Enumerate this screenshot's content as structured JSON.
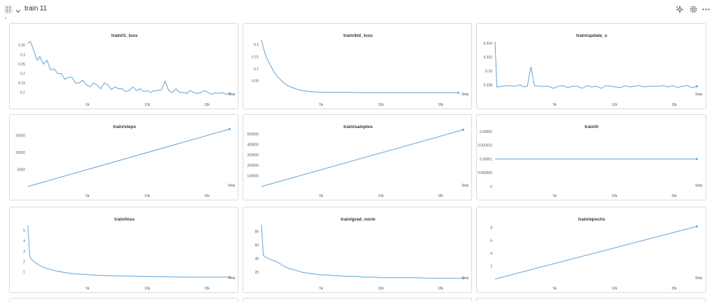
{
  "section": {
    "title": "train",
    "count": "11"
  },
  "panels": [
    {
      "title": "train/l1_loss",
      "x_label": "Step",
      "x_ticks": [
        "5k",
        "10k",
        "15k"
      ],
      "y_ticks": [
        "0.35",
        "0.3",
        "0.25",
        "0.2",
        "0.15",
        "0.1"
      ]
    },
    {
      "title": "train/kld_loss",
      "x_label": "Step",
      "x_ticks": [
        "5k",
        "10k",
        "15k"
      ],
      "y_ticks": [
        "0.2",
        "0.15",
        "0.1",
        "0.05"
      ]
    },
    {
      "title": "train/update_s",
      "x_label": "Step",
      "x_ticks": [
        "5k",
        "10k",
        "15k"
      ],
      "y_ticks": [
        "0.334",
        "0.332",
        "0.33",
        "0.328"
      ]
    },
    {
      "title": "train/steps",
      "x_label": "Step",
      "x_ticks": [
        "5k",
        "10k",
        "15k"
      ],
      "y_ticks": [
        "15000",
        "10000",
        "5000"
      ]
    },
    {
      "title": "train/samples",
      "x_label": "Step",
      "x_ticks": [
        "5k",
        "10k",
        "15k"
      ],
      "y_ticks": [
        "500000",
        "400000",
        "300000",
        "200000",
        "100000"
      ]
    },
    {
      "title": "train/lr",
      "x_label": "Step",
      "x_ticks": [
        "5k",
        "10k",
        "15k"
      ],
      "y_ticks": [
        "0.00002",
        "0.000015",
        "0.00001",
        "0.000005",
        "0"
      ]
    },
    {
      "title": "train/loss",
      "x_label": "Step",
      "x_ticks": [
        "5k",
        "10k",
        "15k"
      ],
      "y_ticks": [
        "5",
        "4",
        "3",
        "2",
        "1"
      ]
    },
    {
      "title": "train/grad_norm",
      "x_label": "Step",
      "x_ticks": [
        "5k",
        "10k",
        "15k"
      ],
      "y_ticks": [
        "80",
        "60",
        "40",
        "20"
      ]
    },
    {
      "title": "train/epochs",
      "x_label": "Step",
      "x_ticks": [
        "5k",
        "10k",
        "15k"
      ],
      "y_ticks": [
        "8",
        "6",
        "4",
        "2"
      ]
    }
  ],
  "chart_data": [
    {
      "type": "line",
      "title": "train/l1_loss",
      "xlabel": "Step",
      "ylabel": "",
      "xlim": [
        0,
        17000
      ],
      "ylim": [
        0.085,
        0.39
      ],
      "grid": false,
      "legend": "none",
      "x": [
        0,
        200,
        400,
        600,
        800,
        1000,
        1300,
        1600,
        1900,
        2200,
        2500,
        2800,
        3100,
        3400,
        3700,
        4000,
        4300,
        4600,
        4900,
        5200,
        5500,
        5800,
        6100,
        6400,
        6700,
        7000,
        7300,
        7600,
        7900,
        8200,
        8500,
        8800,
        9100,
        9400,
        9700,
        10000,
        10300,
        10600,
        10900,
        11200,
        11500,
        11800,
        12100,
        12400,
        12700,
        13000,
        13300,
        13600,
        13900,
        14200,
        14500,
        14800,
        15100,
        15400,
        15700,
        16000,
        16300,
        16600,
        16900
      ],
      "y": [
        0.36,
        0.37,
        0.34,
        0.3,
        0.27,
        0.29,
        0.25,
        0.27,
        0.22,
        0.225,
        0.2,
        0.2,
        0.17,
        0.18,
        0.18,
        0.15,
        0.15,
        0.165,
        0.14,
        0.13,
        0.15,
        0.14,
        0.12,
        0.15,
        0.14,
        0.115,
        0.13,
        0.12,
        0.12,
        0.105,
        0.11,
        0.13,
        0.11,
        0.12,
        0.105,
        0.11,
        0.1,
        0.11,
        0.11,
        0.115,
        0.16,
        0.11,
        0.1,
        0.12,
        0.1,
        0.1,
        0.095,
        0.11,
        0.1,
        0.095,
        0.1,
        0.11,
        0.1,
        0.09,
        0.1,
        0.095,
        0.1,
        0.09,
        0.095
      ]
    },
    {
      "type": "line",
      "title": "train/kld_loss",
      "xlabel": "Step",
      "ylabel": "",
      "xlim": [
        0,
        17000
      ],
      "ylim": [
        -0.01,
        0.23
      ],
      "x": [
        0,
        200,
        400,
        700,
        1000,
        1400,
        1800,
        2200,
        2700,
        3200,
        3700,
        4200,
        4700,
        5200,
        5700,
        6500,
        7500,
        8500,
        9500,
        10500,
        11500,
        12500,
        13500,
        14500,
        15500,
        16500
      ],
      "y": [
        0.22,
        0.18,
        0.15,
        0.12,
        0.09,
        0.065,
        0.045,
        0.03,
        0.02,
        0.012,
        0.008,
        0.005,
        0.004,
        0.003,
        0.002,
        0.002,
        0.002,
        0.001,
        0.001,
        0.001,
        0.001,
        0.001,
        0.001,
        0.001,
        0.001,
        0.001
      ]
    },
    {
      "type": "line",
      "title": "train/update_s",
      "xlabel": "Step",
      "ylabel": "",
      "xlim": [
        0,
        17000
      ],
      "ylim": [
        0.3265,
        0.3348
      ],
      "x": [
        0,
        150,
        600,
        1100,
        1600,
        2100,
        2400,
        2700,
        3000,
        3300,
        3700,
        4100,
        4500,
        4900,
        5300,
        5700,
        6100,
        6500,
        6900,
        7300,
        7700,
        8100,
        8500,
        8900,
        9300,
        9700,
        10100,
        10500,
        10900,
        11300,
        11700,
        12100,
        12500,
        12900,
        13300,
        13700,
        14100,
        14500,
        14900,
        15300,
        15700,
        16100,
        16500,
        16900
      ],
      "y": [
        0.3342,
        0.3277,
        0.3278,
        0.3279,
        0.3278,
        0.328,
        0.3277,
        0.3278,
        0.3306,
        0.3279,
        0.3278,
        0.3278,
        0.3278,
        0.3275,
        0.3278,
        0.3279,
        0.3276,
        0.3278,
        0.3278,
        0.3275,
        0.3279,
        0.3277,
        0.3278,
        0.3275,
        0.3279,
        0.3278,
        0.3277,
        0.3276,
        0.3279,
        0.3277,
        0.3278,
        0.3279,
        0.3277,
        0.3278,
        0.3278,
        0.3278,
        0.3279,
        0.3277,
        0.3279,
        0.3276,
        0.3278,
        0.3279,
        0.3276,
        0.3278
      ]
    },
    {
      "type": "line",
      "title": "train/steps",
      "xlabel": "Step",
      "ylabel": "",
      "xlim": [
        0,
        17000
      ],
      "ylim": [
        0,
        17000
      ],
      "x": [
        0,
        16900
      ],
      "y": [
        0,
        16900
      ]
    },
    {
      "type": "line",
      "title": "train/samples",
      "xlabel": "Step",
      "ylabel": "",
      "xlim": [
        0,
        17000
      ],
      "ylim": [
        0,
        550000
      ],
      "x": [
        0,
        16900
      ],
      "y": [
        0,
        540000
      ]
    },
    {
      "type": "line",
      "title": "train/lr",
      "xlabel": "Step",
      "ylabel": "",
      "xlim": [
        0,
        17000
      ],
      "ylim": [
        0,
        2.1e-05
      ],
      "x": [
        0,
        16900
      ],
      "y": [
        1e-05,
        1e-05
      ]
    },
    {
      "type": "line",
      "title": "train/loss",
      "xlabel": "Step",
      "ylabel": "",
      "xlim": [
        0,
        17000
      ],
      "ylim": [
        0.3,
        5.9
      ],
      "x": [
        0,
        150,
        300,
        600,
        1000,
        1500,
        2000,
        2500,
        3000,
        3500,
        4000,
        5000,
        6000,
        7000,
        8000,
        10000,
        12000,
        14000,
        16900
      ],
      "y": [
        5.5,
        2.5,
        2.2,
        1.9,
        1.6,
        1.35,
        1.2,
        1.05,
        0.95,
        0.85,
        0.8,
        0.72,
        0.66,
        0.62,
        0.58,
        0.54,
        0.51,
        0.49,
        0.48
      ]
    },
    {
      "type": "line",
      "title": "train/grad_norm",
      "xlabel": "Step",
      "ylabel": "",
      "xlim": [
        0,
        17000
      ],
      "ylim": [
        10,
        95
      ],
      "x": [
        0,
        150,
        300,
        600,
        900,
        1200,
        1500,
        1800,
        2100,
        2400,
        2700,
        3000,
        3400,
        3800,
        4200,
        4600,
        5000,
        5500,
        6000,
        6500,
        7000,
        7500,
        8000,
        8500,
        9000,
        9500,
        10000,
        11000,
        12000,
        13000,
        14000,
        15000,
        16000,
        16900
      ],
      "y": [
        90,
        45,
        43,
        40,
        38,
        36,
        33,
        30,
        27,
        25,
        24,
        22,
        20,
        19,
        18,
        17,
        16,
        16,
        15,
        15,
        14,
        14,
        14,
        13,
        13,
        13,
        12,
        12,
        12,
        12,
        11,
        11,
        11,
        11
      ]
    },
    {
      "type": "line",
      "title": "train/epochs",
      "xlabel": "Step",
      "ylabel": "",
      "xlim": [
        0,
        17000
      ],
      "ylim": [
        0,
        9
      ],
      "x": [
        0,
        16900
      ],
      "y": [
        0,
        8.2
      ]
    }
  ]
}
